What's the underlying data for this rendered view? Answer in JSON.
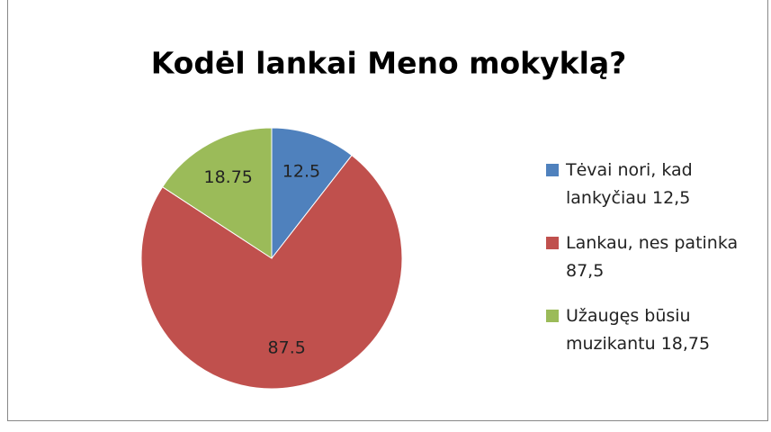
{
  "chart_data": {
    "type": "pie",
    "title": "Kodėl lankai Meno mokyklą?",
    "categories": [
      "Tėvai nori, kad lankyčiau 12,5",
      "Lankau, nes patinka 87,5",
      "Užaugęs būsiu muzikantu 18,75"
    ],
    "values": [
      12.5,
      87.5,
      18.75
    ],
    "colors": [
      "#4f81bd",
      "#c0504d",
      "#9bbb59"
    ],
    "legend": "right"
  }
}
